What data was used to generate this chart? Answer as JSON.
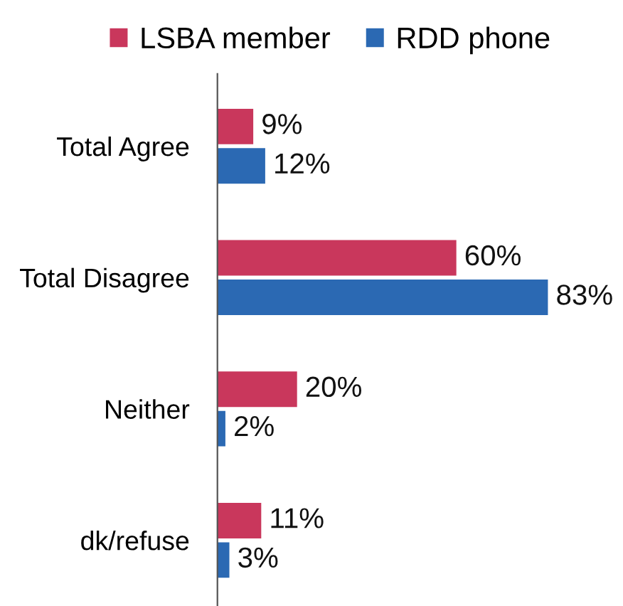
{
  "chart_data": {
    "type": "bar",
    "orientation": "horizontal",
    "categories": [
      "Total Agree",
      "Total Disagree",
      "Neither",
      "dk/refuse"
    ],
    "series": [
      {
        "name": "LSBA member",
        "color": "#c9375c",
        "values": [
          9,
          60,
          20,
          11
        ],
        "value_labels": [
          "9%",
          "60%",
          "20%",
          "11%"
        ]
      },
      {
        "name": "RDD phone",
        "color": "#2b69b3",
        "values": [
          12,
          83,
          2,
          3
        ],
        "value_labels": [
          "12%",
          "83%",
          "2%",
          "3%"
        ]
      }
    ],
    "tick_labels": "y",
    "grid": false,
    "legend": "top"
  }
}
